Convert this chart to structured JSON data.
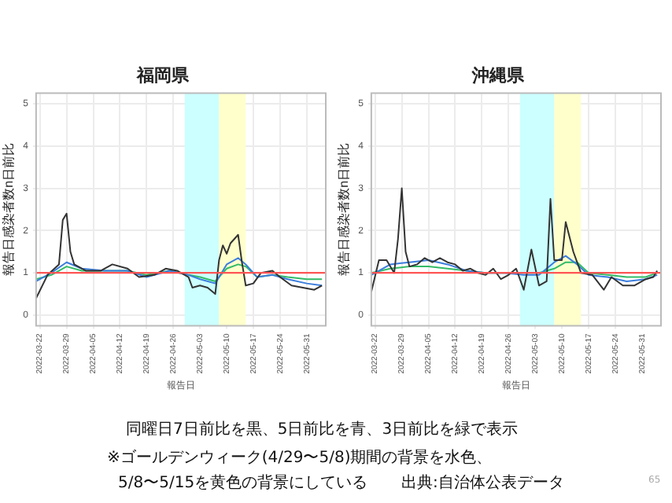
{
  "chart_data": [
    {
      "type": "line",
      "title": "福岡県",
      "xlabel": "報告日",
      "ylabel": "報告日感染者数n日前比",
      "xlim": [
        "2022-03-21",
        "2022-06-05"
      ],
      "ylim": [
        -0.25,
        5.25
      ],
      "xticks": [
        "2022-03-22",
        "2022-03-29",
        "2022-04-05",
        "2022-04-12",
        "2022-04-19",
        "2022-04-26",
        "2022-05-03",
        "2022-05-10",
        "2022-05-17",
        "2022-05-24",
        "2022-05-31"
      ],
      "yticks": [
        0,
        1,
        2,
        3,
        4,
        5
      ],
      "grid": true,
      "ref_lines": [
        {
          "axis": "y",
          "value": 1,
          "color": "#ff5555"
        }
      ],
      "bands": [
        {
          "axis": "x",
          "from": "2022-04-29",
          "to": "2022-05-08",
          "color": "#ccffff"
        },
        {
          "axis": "x",
          "from": "2022-05-08",
          "to": "2022-05-15",
          "color": "#ffffcc"
        }
      ],
      "series": [
        {
          "color": "#333333",
          "x": [
            "2022-03-21",
            "2022-03-24",
            "2022-03-27",
            "2022-03-28",
            "2022-03-29",
            "2022-03-30",
            "2022-03-31",
            "2022-04-03",
            "2022-04-07",
            "2022-04-10",
            "2022-04-14",
            "2022-04-17",
            "2022-04-21",
            "2022-04-24",
            "2022-04-27",
            "2022-04-30",
            "2022-05-01",
            "2022-05-03",
            "2022-05-05",
            "2022-05-07",
            "2022-05-08",
            "2022-05-09",
            "2022-05-10",
            "2022-05-11",
            "2022-05-13",
            "2022-05-14",
            "2022-05-15",
            "2022-05-17",
            "2022-05-19",
            "2022-05-22",
            "2022-05-24",
            "2022-05-27",
            "2022-05-30",
            "2022-06-02",
            "2022-06-04"
          ],
          "values": [
            0.4,
            0.95,
            1.2,
            2.25,
            2.4,
            1.5,
            1.2,
            1.05,
            1.05,
            1.2,
            1.1,
            0.9,
            0.95,
            1.1,
            1.05,
            0.9,
            0.65,
            0.7,
            0.65,
            0.5,
            1.3,
            1.65,
            1.45,
            1.7,
            1.9,
            1.25,
            0.7,
            0.75,
            1.0,
            1.05,
            0.9,
            0.7,
            0.65,
            0.6,
            0.7
          ]
        },
        {
          "color": "#3b7ddd",
          "x": [
            "2022-03-21",
            "2022-03-25",
            "2022-03-29",
            "2022-04-02",
            "2022-04-08",
            "2022-04-14",
            "2022-04-19",
            "2022-04-25",
            "2022-04-30",
            "2022-05-03",
            "2022-05-07",
            "2022-05-10",
            "2022-05-13",
            "2022-05-15",
            "2022-05-18",
            "2022-05-22",
            "2022-05-26",
            "2022-05-31",
            "2022-06-04"
          ],
          "values": [
            0.8,
            1.0,
            1.25,
            1.1,
            1.05,
            1.05,
            0.9,
            1.05,
            0.95,
            0.85,
            0.75,
            1.2,
            1.35,
            1.2,
            0.9,
            0.95,
            0.85,
            0.75,
            0.7
          ]
        },
        {
          "color": "#33bb66",
          "x": [
            "2022-03-21",
            "2022-03-25",
            "2022-03-29",
            "2022-04-02",
            "2022-04-08",
            "2022-04-14",
            "2022-04-19",
            "2022-04-25",
            "2022-04-30",
            "2022-05-03",
            "2022-05-07",
            "2022-05-10",
            "2022-05-13",
            "2022-05-15",
            "2022-05-18",
            "2022-05-22",
            "2022-05-26",
            "2022-05-31",
            "2022-06-04"
          ],
          "values": [
            0.85,
            0.95,
            1.15,
            1.05,
            1.05,
            1.05,
            0.95,
            1.05,
            0.95,
            0.9,
            0.8,
            1.1,
            1.2,
            1.15,
            0.9,
            0.95,
            0.9,
            0.85,
            0.85
          ]
        }
      ]
    },
    {
      "type": "line",
      "title": "沖縄県",
      "xlabel": "報告日",
      "ylabel": "報告日感染者数n日前比",
      "xlim": [
        "2022-03-21",
        "2022-06-05"
      ],
      "ylim": [
        -0.25,
        5.25
      ],
      "xticks": [
        "2022-03-22",
        "2022-03-29",
        "2022-04-05",
        "2022-04-12",
        "2022-04-19",
        "2022-04-26",
        "2022-05-03",
        "2022-05-10",
        "2022-05-17",
        "2022-05-24",
        "2022-05-31"
      ],
      "yticks": [
        0,
        1,
        2,
        3,
        4,
        5
      ],
      "grid": true,
      "ref_lines": [
        {
          "axis": "y",
          "value": 1,
          "color": "#ff5555"
        }
      ],
      "bands": [
        {
          "axis": "x",
          "from": "2022-04-29",
          "to": "2022-05-08",
          "color": "#ccffff"
        },
        {
          "axis": "x",
          "from": "2022-05-08",
          "to": "2022-05-15",
          "color": "#ffffcc"
        }
      ],
      "series": [
        {
          "color": "#333333",
          "x": [
            "2022-03-21",
            "2022-03-23",
            "2022-03-25",
            "2022-03-27",
            "2022-03-28",
            "2022-03-29",
            "2022-03-30",
            "2022-03-31",
            "2022-04-02",
            "2022-04-04",
            "2022-04-06",
            "2022-04-08",
            "2022-04-10",
            "2022-04-12",
            "2022-04-14",
            "2022-04-16",
            "2022-04-18",
            "2022-04-20",
            "2022-04-22",
            "2022-04-24",
            "2022-04-26",
            "2022-04-28",
            "2022-04-30",
            "2022-05-02",
            "2022-05-04",
            "2022-05-06",
            "2022-05-07",
            "2022-05-08",
            "2022-05-10",
            "2022-05-11",
            "2022-05-13",
            "2022-05-15",
            "2022-05-18",
            "2022-05-21",
            "2022-05-23",
            "2022-05-26",
            "2022-05-29",
            "2022-06-01",
            "2022-06-03",
            "2022-06-04"
          ],
          "values": [
            0.55,
            1.3,
            1.3,
            1.0,
            1.8,
            3.0,
            1.5,
            1.15,
            1.2,
            1.35,
            1.25,
            1.35,
            1.25,
            1.2,
            1.05,
            1.1,
            1.0,
            0.95,
            1.1,
            0.85,
            0.95,
            1.1,
            0.6,
            1.55,
            0.7,
            0.8,
            2.75,
            1.3,
            1.3,
            2.2,
            1.5,
            1.0,
            0.95,
            0.6,
            0.9,
            0.7,
            0.7,
            0.85,
            0.9,
            1.05
          ]
        },
        {
          "color": "#3b7ddd",
          "x": [
            "2022-03-21",
            "2022-03-26",
            "2022-03-31",
            "2022-04-05",
            "2022-04-10",
            "2022-04-15",
            "2022-04-20",
            "2022-04-25",
            "2022-04-30",
            "2022-05-04",
            "2022-05-08",
            "2022-05-11",
            "2022-05-14",
            "2022-05-17",
            "2022-05-22",
            "2022-05-27",
            "2022-06-01",
            "2022-06-04"
          ],
          "values": [
            0.95,
            1.2,
            1.25,
            1.3,
            1.2,
            1.05,
            1.0,
            1.0,
            0.95,
            0.95,
            1.25,
            1.4,
            1.2,
            0.95,
            0.9,
            0.8,
            0.85,
            0.95
          ]
        },
        {
          "color": "#33bb66",
          "x": [
            "2022-03-21",
            "2022-03-26",
            "2022-03-31",
            "2022-04-05",
            "2022-04-10",
            "2022-04-15",
            "2022-04-20",
            "2022-04-25",
            "2022-04-30",
            "2022-05-04",
            "2022-05-08",
            "2022-05-11",
            "2022-05-14",
            "2022-05-17",
            "2022-05-22",
            "2022-05-27",
            "2022-06-01",
            "2022-06-04"
          ],
          "values": [
            1.0,
            1.1,
            1.15,
            1.15,
            1.1,
            1.05,
            1.0,
            1.0,
            1.0,
            1.0,
            1.1,
            1.25,
            1.25,
            1.0,
            0.95,
            0.9,
            0.9,
            1.0
          ]
        }
      ]
    },
    {
      "type": "other",
      "annotations": [
        "同曜日7日前比を黒、5日前比を青、3日前比を緑で表示",
        "※ゴールデンウィーク(4/29〜5/8)期間の背景を水色、",
        "5/8〜5/15を黄色の背景にしている",
        "出典:自治体公表データ",
        "65"
      ]
    }
  ]
}
